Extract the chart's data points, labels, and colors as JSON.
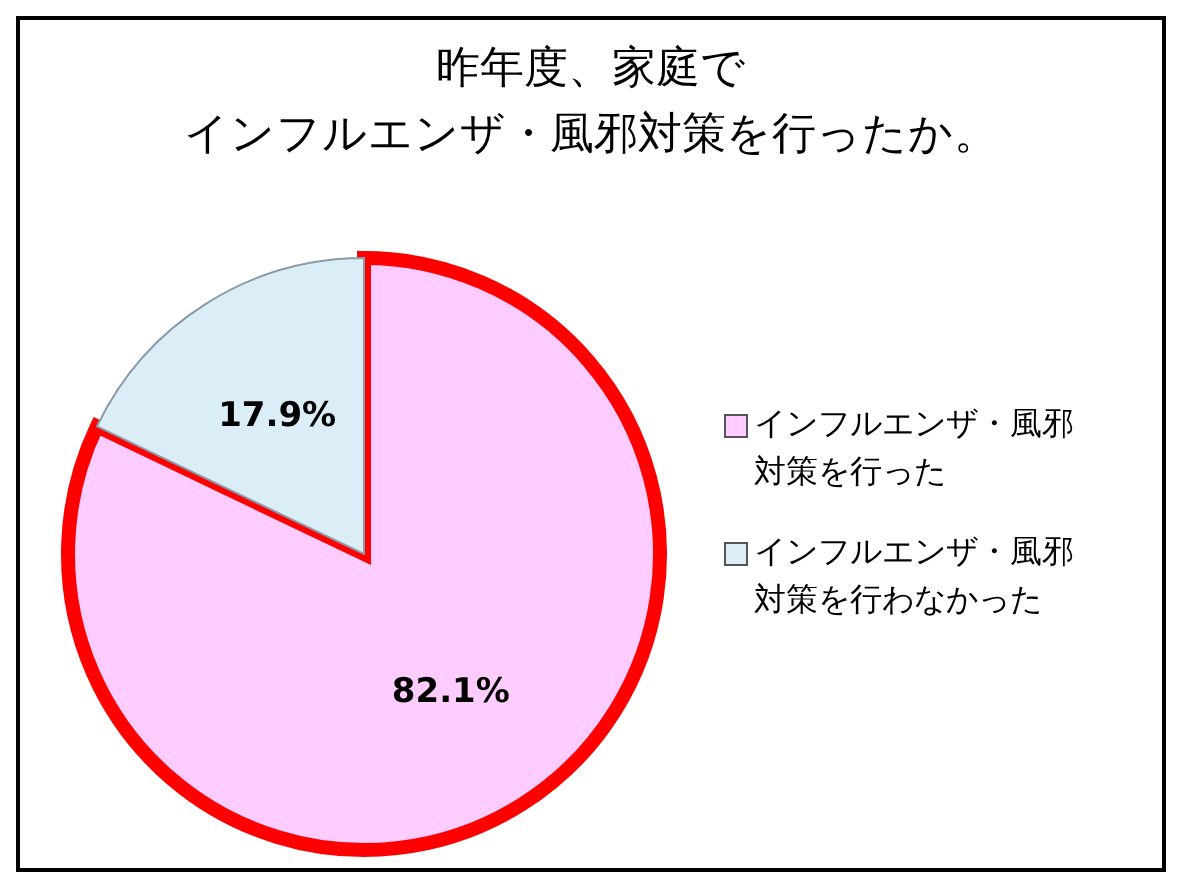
{
  "chart_data": {
    "type": "pie",
    "title": "昨年度、家庭で",
    "subtitle": "インフルエンザ・風邪対策を行ったか。",
    "categories": [
      "インフルエンザ・風邪対策を行った",
      "インフルエンザ・風邪対策を行わなかった"
    ],
    "values": [
      82.1,
      17.9
    ],
    "value_labels": [
      "82.1%",
      "17.9%"
    ],
    "colors": [
      "#ffccff",
      "#dbeef8"
    ],
    "legend": "right"
  }
}
